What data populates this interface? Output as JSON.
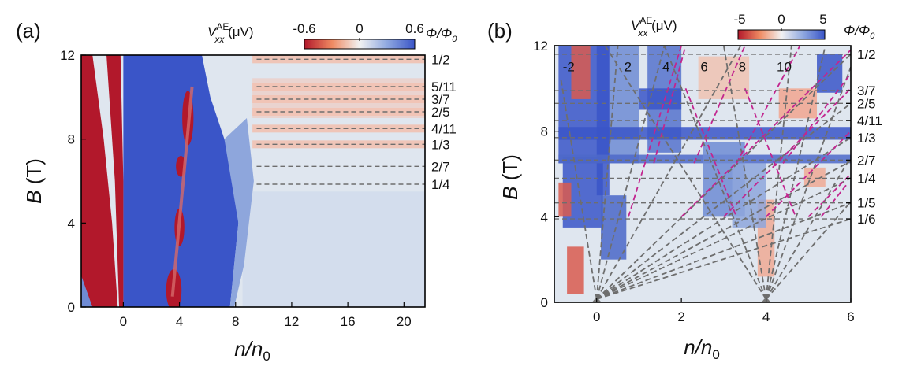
{
  "colors": {
    "low": "#b2182b",
    "mid": "#dde5ee",
    "high": "#3a55c8",
    "dash": "#6e6e6e",
    "magenta": "#c2258f"
  },
  "panels": [
    {
      "id": "a",
      "panel_label": "(a)",
      "colorbar": {
        "label_main": "V",
        "label_sup": "AE",
        "label_sub": "xx",
        "label_unit": " (μV)",
        "ticks": [
          "-0.6",
          "0",
          "0.6"
        ],
        "min": -0.6,
        "max": 0.6
      },
      "right_label": {
        "main": "Φ/Φ",
        "sub": "0"
      },
      "xlabel": {
        "n": "n/n",
        "sub": "0"
      },
      "ylabel": {
        "b": "B",
        "unit": " (T)"
      }
    },
    {
      "id": "b",
      "panel_label": "(b)",
      "colorbar": {
        "label_main": "V",
        "label_sup": "AE",
        "label_sub": "xx",
        "label_unit": " (μV)",
        "ticks": [
          "-5",
          "0",
          "5"
        ],
        "min": -5,
        "max": 5
      },
      "right_label": {
        "main": "Φ/Φ",
        "sub": "0"
      },
      "xlabel": {
        "n": "n/n",
        "sub": "0"
      },
      "ylabel": {
        "b": "B",
        "unit": " (T)"
      }
    }
  ],
  "chart_data": [
    {
      "type": "heatmap",
      "xlim": [
        -3,
        21.5
      ],
      "ylim": [
        0,
        12
      ],
      "x_ticks": [
        0,
        4,
        8,
        12,
        16,
        20
      ],
      "y_ticks": [
        0,
        4,
        8,
        12
      ],
      "flux_lines": [
        {
          "label": "1/2",
          "B": 11.8
        },
        {
          "label": "5/11",
          "B": 10.5
        },
        {
          "label": "3/7",
          "B": 9.9
        },
        {
          "label": "2/5",
          "B": 9.3
        },
        {
          "label": "4/11",
          "B": 8.5
        },
        {
          "label": "1/3",
          "B": 7.75
        },
        {
          "label": "2/7",
          "B": 6.7
        },
        {
          "label": "1/4",
          "B": 5.85
        }
      ],
      "flux_line_xrange": [
        9.5,
        21.5
      ]
    },
    {
      "type": "heatmap",
      "xlim": [
        -1,
        6
      ],
      "ylim": [
        0,
        12
      ],
      "x_ticks": [
        0,
        2,
        4,
        6
      ],
      "y_ticks": [
        0,
        4,
        8,
        12
      ],
      "filling_labels": [
        {
          "label": "-2",
          "n": -0.8,
          "B": 10.8
        },
        {
          "label": "2",
          "n": 0.65,
          "B": 10.8
        },
        {
          "label": "4",
          "n": 1.55,
          "B": 10.8
        },
        {
          "label": "6",
          "n": 2.45,
          "B": 10.8
        },
        {
          "label": "8",
          "n": 3.35,
          "B": 10.8
        },
        {
          "label": "10",
          "n": 4.25,
          "B": 10.8
        }
      ],
      "flux_lines": [
        {
          "label": "1/2",
          "B": 11.6
        },
        {
          "label": "3/7",
          "B": 9.9
        },
        {
          "label": "2/5",
          "B": 9.3
        },
        {
          "label": "4/11",
          "B": 8.5
        },
        {
          "label": "1/3",
          "B": 7.7
        },
        {
          "label": "2/7",
          "B": 6.65
        },
        {
          "label": "1/4",
          "B": 5.8
        },
        {
          "label": "1/5",
          "B": 4.65
        },
        {
          "label": "1/6",
          "B": 3.9
        }
      ],
      "fan_origins": [
        0,
        4
      ],
      "fan0_lines": [
        {
          "n": -0.85,
          "B": 10.5
        },
        {
          "n": 0.5,
          "B": 12
        },
        {
          "n": 1.6,
          "B": 12
        },
        {
          "n": 3.4,
          "B": 12
        },
        {
          "n": 6,
          "B": 11.6
        },
        {
          "n": 6,
          "B": 9.3
        },
        {
          "n": 6,
          "B": 7.7
        },
        {
          "n": 6,
          "B": 6.6
        },
        {
          "n": 6,
          "B": 5.8
        },
        {
          "n": 6,
          "B": 4.65
        },
        {
          "n": 6,
          "B": 3.9
        }
      ],
      "fan4_lines": [
        {
          "n": 0.2,
          "B": 12
        },
        {
          "n": 1.6,
          "B": 12
        },
        {
          "n": 3.0,
          "B": 12
        },
        {
          "n": 4.6,
          "B": 12
        },
        {
          "n": 5.4,
          "B": 12
        },
        {
          "n": 6,
          "B": 11
        },
        {
          "n": 6,
          "B": 6.8
        },
        {
          "n": 6,
          "B": 4.7
        }
      ],
      "magenta_lines": [
        [
          [
            0.75,
            4.0
          ],
          [
            2.0,
            12.0
          ]
        ],
        [
          [
            1.35,
            6.5
          ],
          [
            2.1,
            12.0
          ]
        ],
        [
          [
            2.0,
            4.0
          ],
          [
            6.0,
            11.8
          ]
        ],
        [
          [
            2.3,
            6.5
          ],
          [
            3.5,
            12.0
          ]
        ],
        [
          [
            3.0,
            4.0
          ],
          [
            6.0,
            10.0
          ]
        ],
        [
          [
            3.3,
            6.5
          ],
          [
            4.8,
            12.0
          ]
        ],
        [
          [
            4.0,
            4.0
          ],
          [
            6.0,
            8.0
          ]
        ],
        [
          [
            4.4,
            6.5
          ],
          [
            6.0,
            10.7
          ]
        ],
        [
          [
            5.0,
            4.0
          ],
          [
            6.0,
            6.0
          ]
        ],
        [
          [
            5.3,
            4.0
          ],
          [
            5.9,
            5.5
          ]
        ],
        [
          [
            2.1,
            10.0
          ],
          [
            3.3,
            4.0
          ]
        ],
        [
          [
            3.5,
            10.0
          ],
          [
            4.7,
            4.0
          ]
        ]
      ]
    }
  ]
}
